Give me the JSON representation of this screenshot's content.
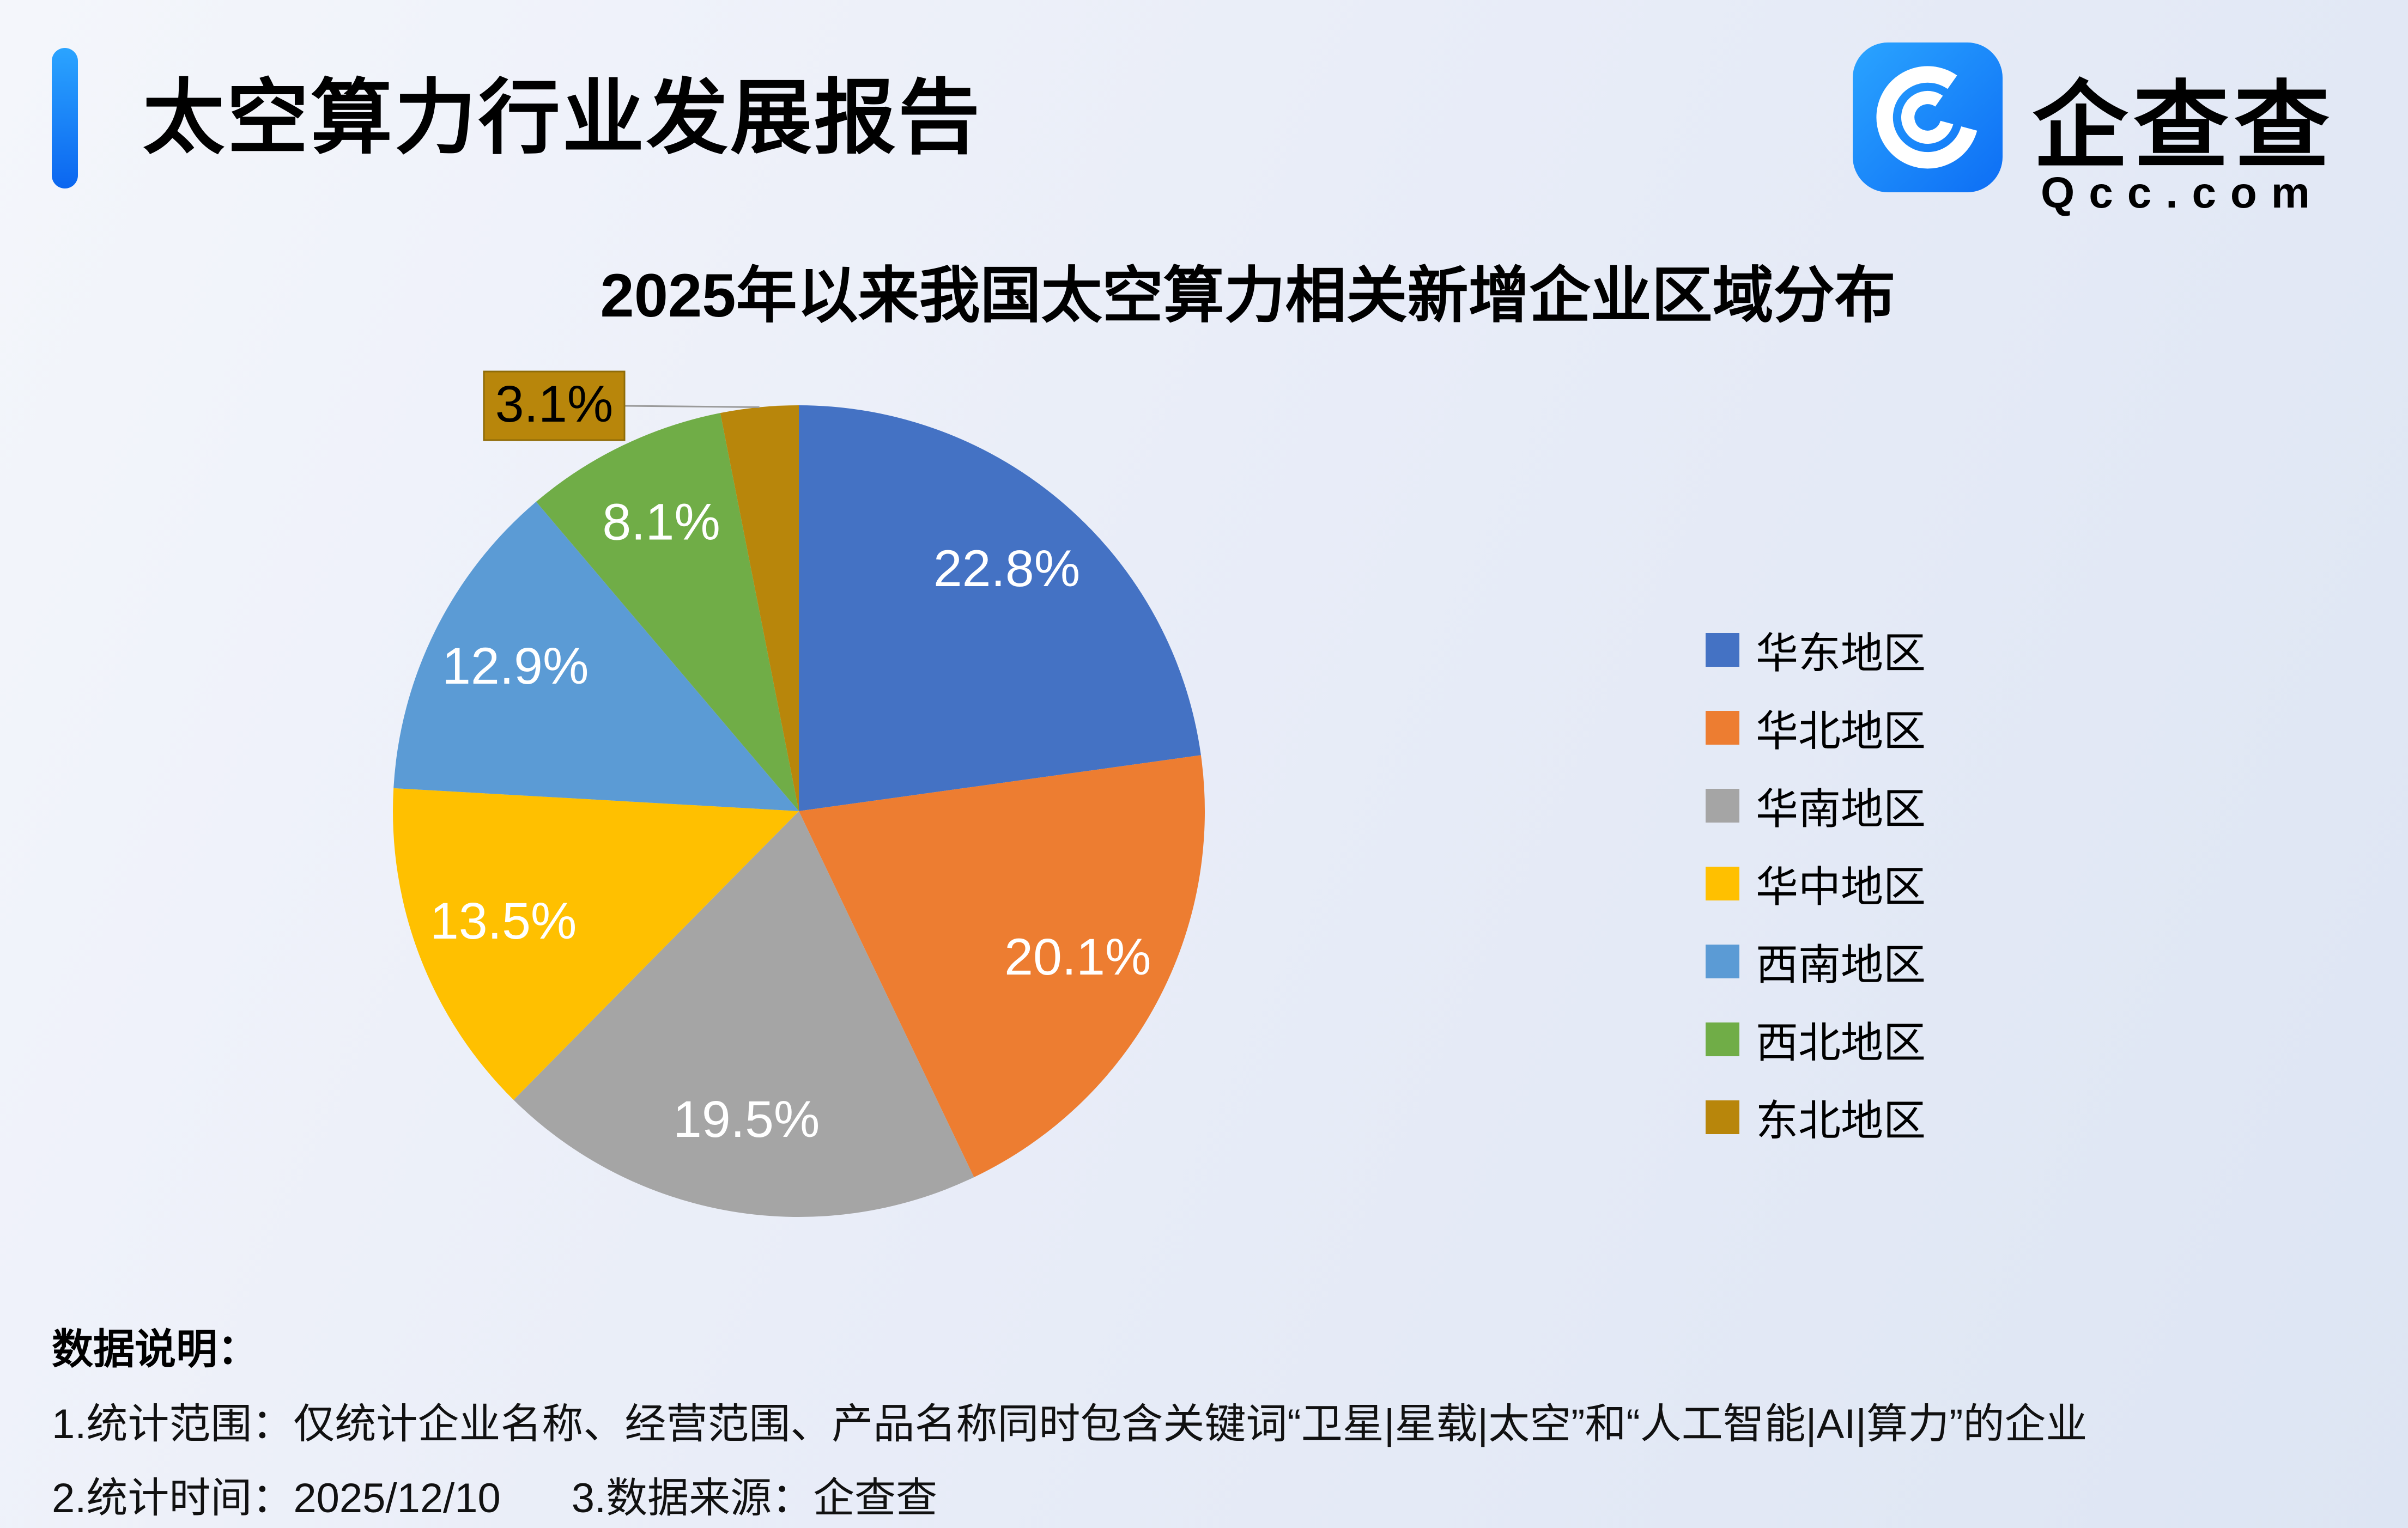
{
  "page": {
    "header": {
      "title": "太空算力行业发展报告",
      "brand_name": "企查查",
      "brand_domain": "Qcc.com"
    },
    "notes": {
      "heading": "数据说明：",
      "line1": "1.统计范围：仅统计企业名称、经营范围、产品名称同时包含关键词“卫星|星载|太空”和“人工智能|AI|算力”的企业",
      "line2_time": "2.统计时间：2025/12/10",
      "line2_source": "3.数据来源：企查查"
    }
  },
  "colors": {
    "accent_bar": "#1486fb",
    "logo_blue": "#1583f7",
    "callout_border": "#8f6c08",
    "leader_line": "#9a9a9a"
  },
  "chart_data": {
    "type": "pie",
    "title": "2025年以来我国太空算力相关新增企业区域分布",
    "start_angle_deg": 0,
    "direction": "clockwise",
    "legend_position": "right",
    "slices": [
      {
        "label": "华东地区",
        "value": 22.8,
        "display": "22.8%",
        "color": "#4472c4"
      },
      {
        "label": "华北地区",
        "value": 20.1,
        "display": "20.1%",
        "color": "#ed7d31"
      },
      {
        "label": "华南地区",
        "value": 19.5,
        "display": "19.5%",
        "color": "#a5a5a5"
      },
      {
        "label": "华中地区",
        "value": 13.5,
        "display": "13.5%",
        "color": "#ffc000"
      },
      {
        "label": "西南地区",
        "value": 12.9,
        "display": "12.9%",
        "color": "#5b9bd5"
      },
      {
        "label": "西北地区",
        "value": 8.1,
        "display": "8.1%",
        "color": "#70ad47"
      },
      {
        "label": "东北地区",
        "value": 3.1,
        "display": "3.1%",
        "color": "#b8860b",
        "callout": true
      }
    ]
  }
}
